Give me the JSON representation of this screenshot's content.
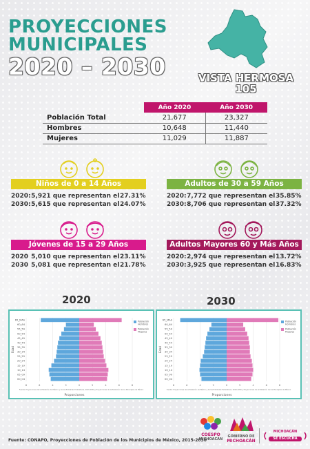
{
  "title": {
    "line1": "PROYECCIONES",
    "line2": "MUNICIPALES",
    "line3": "2020 – 2030"
  },
  "municipio": {
    "name": "VISTA HERMOSA",
    "code": "105"
  },
  "population_table": {
    "headers": [
      "Año 2020",
      "Año 2030"
    ],
    "rows": [
      {
        "label": "Población Total",
        "v2020": "21,677",
        "v2030": "23,327"
      },
      {
        "label": "Hombres",
        "v2020": "10,648",
        "v2030": "11,440"
      },
      {
        "label": "Mujeres",
        "v2020": "11,029",
        "v2030": "11,887"
      }
    ]
  },
  "groups": {
    "ninos": {
      "title": "Niños de 0 a 14 Años",
      "color": "#e3cf1f",
      "lines": [
        {
          "year": "2020:",
          "text": "5,921 que representan el",
          "pct": "27.31%"
        },
        {
          "year": "2030:",
          "text": "5,615 que representan el",
          "pct": "24.07%"
        }
      ]
    },
    "adultos": {
      "title": "Adultos de 30 a 59 Años",
      "color": "#7cb342",
      "lines": [
        {
          "year": "2020:",
          "text": "7,772 que representan el",
          "pct": "35.85%"
        },
        {
          "year": "2030:",
          "text": "8,706 que representan el",
          "pct": "37.32%"
        }
      ]
    },
    "jovenes": {
      "title": "Jóvenes de 15 a 29 Años",
      "color": "#d81b8c",
      "lines": [
        {
          "year": "2020",
          "text": "5,010 que representan el",
          "pct": "23.11%"
        },
        {
          "year": "2030",
          "text": "5,081 que representan el",
          "pct": "21.78%"
        }
      ]
    },
    "mayores": {
      "title": "Adultos Mayores  60 y Más Años",
      "color": "#a3195b",
      "lines": [
        {
          "year": "2020:",
          "text": "2,974 que representan el",
          "pct": "13.72%"
        },
        {
          "year": "2030:",
          "text": "3,925 que representan el",
          "pct": "16.83%"
        }
      ]
    }
  },
  "pyramids": {
    "year_2020": "2020",
    "year_2030": "2030",
    "x_label": "Proporciones",
    "y_label": "Edad",
    "legend_hombres": "Población Hombres",
    "legend_mujeres": "Población Mujeres",
    "note": "Fuente: Proyecciones de la Población de México y de las Entidades Federativas, 2016-2050 y Proyecciones de la Población de los Municipios de México"
  },
  "chart_data": [
    {
      "type": "bar",
      "title": "2020",
      "categories": [
        "00_04",
        "05_09",
        "10_14",
        "15_19",
        "20_24",
        "25_29",
        "30_34",
        "35_39",
        "40_44",
        "45_49",
        "50_54",
        "55_59",
        "60_64",
        "65_MAS"
      ],
      "xlabel": "Proporciones",
      "ylabel": "Edad",
      "series": [
        {
          "name": "Población Hombres",
          "color": "#5ea7dc",
          "values": [
            -4.3,
            -4.5,
            -4.6,
            -4.2,
            -3.8,
            -3.5,
            -3.4,
            -3.3,
            -3.2,
            -3.0,
            -2.7,
            -2.3,
            -2.0,
            -5.8
          ]
        },
        {
          "name": "Población Mujeres",
          "color": "#e07ab8",
          "values": [
            4.2,
            4.3,
            4.4,
            4.1,
            3.9,
            3.7,
            3.6,
            3.5,
            3.4,
            3.2,
            2.9,
            2.5,
            2.2,
            6.4
          ]
        }
      ]
    },
    {
      "type": "bar",
      "title": "2030",
      "categories": [
        "00_04",
        "05_09",
        "10_14",
        "15_19",
        "20_24",
        "25_29",
        "30_34",
        "35_39",
        "40_44",
        "45_49",
        "50_54",
        "55_59",
        "60_64",
        "65_MAS"
      ],
      "xlabel": "Proporciones",
      "ylabel": "Edad",
      "series": [
        {
          "name": "Población Hombres",
          "color": "#5ea7dc",
          "values": [
            -3.8,
            -4.0,
            -4.1,
            -4.0,
            -3.9,
            -3.6,
            -3.4,
            -3.3,
            -3.2,
            -3.1,
            -2.9,
            -2.6,
            -2.3,
            -7.0
          ]
        },
        {
          "name": "Población Mujeres",
          "color": "#e07ab8",
          "values": [
            3.7,
            3.9,
            4.0,
            3.9,
            3.8,
            3.6,
            3.5,
            3.5,
            3.4,
            3.3,
            3.1,
            2.8,
            2.5,
            7.8
          ]
        }
      ]
    }
  ],
  "footer": {
    "source": "Fuente: CONAPO, Proyecciones de Población de los Municipios de México, 2015-2030"
  },
  "logos": {
    "coespo": "COESPO",
    "coespo_sub": "MICHOACÁN",
    "gobierno": "GOBIERNO DE",
    "michoacan": "MICHOACÁN",
    "escucha_1": "MICHOACÁN",
    "escucha_2": "SE ESCUCHA"
  }
}
